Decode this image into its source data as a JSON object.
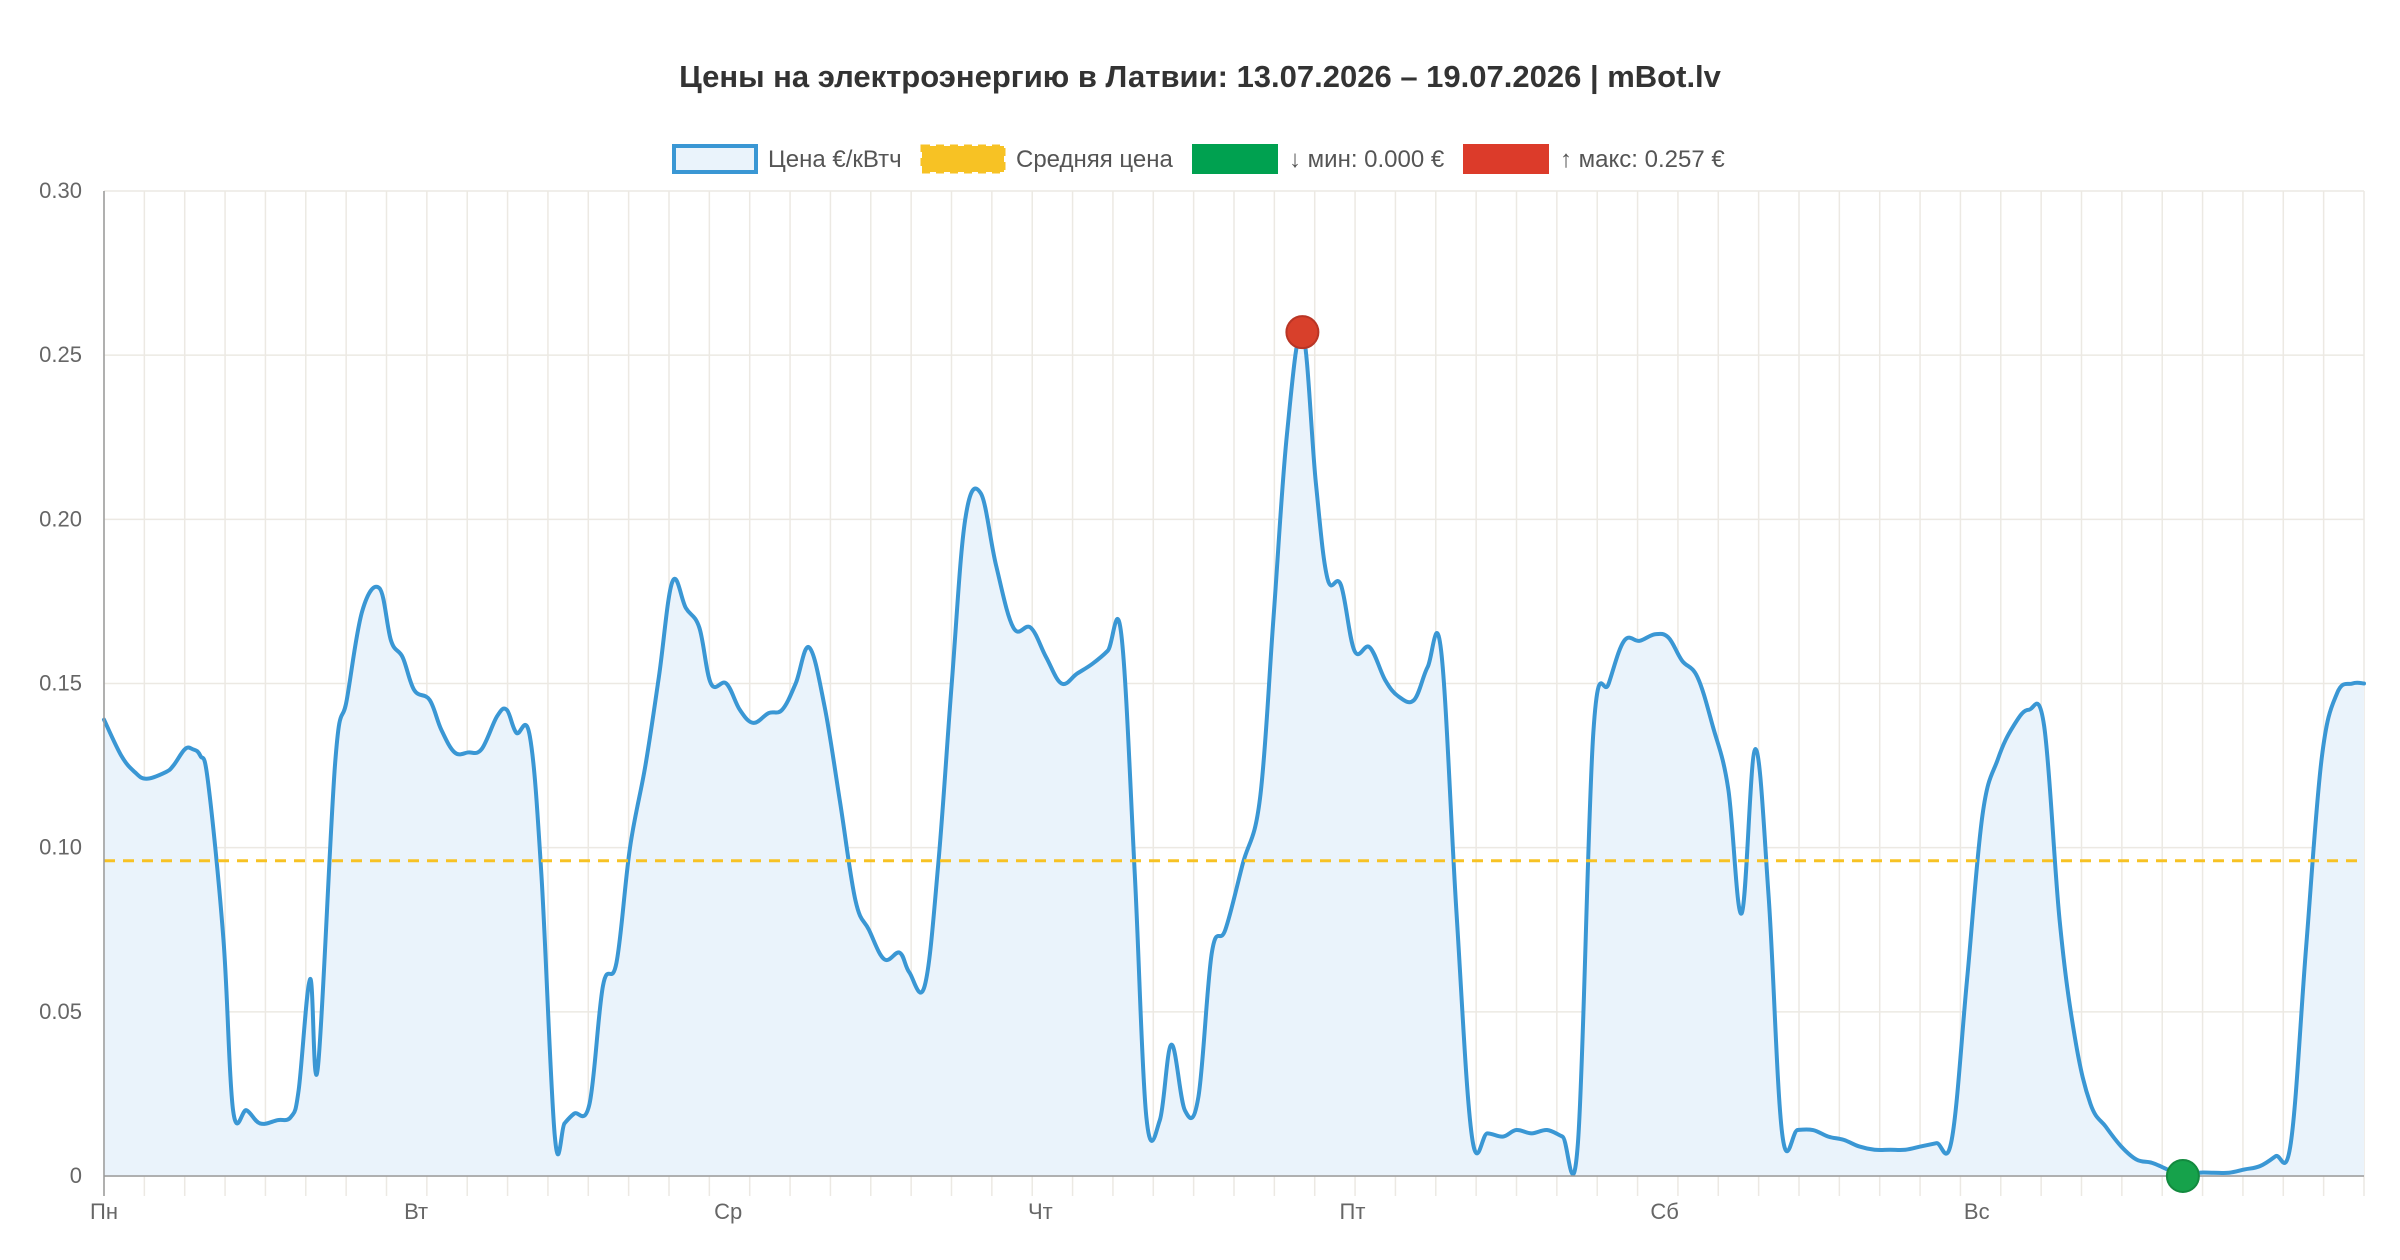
{
  "chart_data": {
    "type": "area",
    "title": "Цены на электроэнергию в Латвии: 13.07.2026 – 19.07.2026 | mBot.lv",
    "xlabel": "",
    "ylabel": "",
    "x_tick_labels": [
      "Пн",
      "Вт",
      "Ср",
      "Чт",
      "Пт",
      "Сб",
      "Вс"
    ],
    "y_tick_labels": [
      "0",
      "0.05",
      "0.10",
      "0.15",
      "0.20",
      "0.25",
      "0.30"
    ],
    "ylim": [
      0,
      0.3
    ],
    "x_points": 56,
    "x_range": [
      0,
      56
    ],
    "grid": true,
    "legend_placement": "top-center",
    "series": [
      {
        "name": "Цена €/кВтч",
        "color": "#3a97d4",
        "fill": "#eaf3fb",
        "values": [
          0.139,
          0.125,
          0.121,
          0.124,
          0.13,
          0.121,
          0.064,
          0.019,
          0.016,
          0.018,
          0.029,
          0.06,
          0.033,
          0.126,
          0.145,
          0.172,
          0.179,
          0.163,
          0.148,
          0.136,
          0.129,
          0.13,
          0.142,
          0.135,
          0.012,
          0.018,
          0.024,
          0.058,
          0.068,
          0.1,
          0.127,
          0.16,
          0.181,
          0.17,
          0.15,
          0.148
        ],
        "points": [
          [
            0.0,
            0.139
          ],
          [
            0.45,
            0.128
          ],
          [
            0.8,
            0.123
          ],
          [
            1.1,
            0.121
          ],
          [
            1.6,
            0.123
          ],
          [
            1.8,
            0.125
          ],
          [
            2.1,
            0.13
          ],
          [
            2.3,
            0.13
          ],
          [
            2.5,
            0.128
          ],
          [
            2.7,
            0.12
          ],
          [
            3.1,
            0.072
          ],
          [
            3.35,
            0.02
          ],
          [
            3.7,
            0.02
          ],
          [
            4.05,
            0.016
          ],
          [
            4.5,
            0.017
          ],
          [
            4.85,
            0.018
          ],
          [
            5.05,
            0.026
          ],
          [
            5.35,
            0.06
          ],
          [
            5.55,
            0.033
          ],
          [
            6.0,
            0.126
          ],
          [
            6.3,
            0.145
          ],
          [
            6.7,
            0.172
          ],
          [
            7.15,
            0.179
          ],
          [
            7.45,
            0.163
          ],
          [
            7.75,
            0.158
          ],
          [
            8.05,
            0.148
          ],
          [
            8.45,
            0.145
          ],
          [
            8.75,
            0.136
          ],
          [
            9.1,
            0.129
          ],
          [
            9.45,
            0.129
          ],
          [
            9.8,
            0.13
          ],
          [
            10.2,
            0.14
          ],
          [
            10.45,
            0.142
          ],
          [
            10.7,
            0.135
          ],
          [
            11.05,
            0.134
          ],
          [
            11.35,
            0.092
          ],
          [
            11.7,
            0.012
          ],
          [
            11.95,
            0.016
          ],
          [
            12.2,
            0.019
          ],
          [
            12.6,
            0.022
          ],
          [
            12.95,
            0.058
          ],
          [
            13.3,
            0.065
          ],
          [
            13.65,
            0.1
          ],
          [
            14.05,
            0.125
          ],
          [
            14.4,
            0.152
          ],
          [
            14.75,
            0.181
          ],
          [
            15.1,
            0.173
          ],
          [
            15.45,
            0.167
          ],
          [
            15.75,
            0.15
          ],
          [
            16.15,
            0.15
          ],
          [
            16.5,
            0.142
          ],
          [
            16.85,
            0.138
          ],
          [
            17.25,
            0.141
          ],
          [
            17.6,
            0.142
          ],
          [
            17.95,
            0.15
          ],
          [
            18.3,
            0.161
          ],
          [
            18.7,
            0.143
          ],
          [
            19.1,
            0.114
          ],
          [
            19.5,
            0.084
          ],
          [
            19.85,
            0.075
          ],
          [
            20.25,
            0.066
          ],
          [
            20.65,
            0.068
          ],
          [
            20.9,
            0.062
          ],
          [
            21.3,
            0.058
          ],
          [
            21.65,
            0.095
          ],
          [
            22.0,
            0.15
          ],
          [
            22.35,
            0.2
          ],
          [
            22.75,
            0.208
          ],
          [
            23.15,
            0.186
          ],
          [
            23.6,
            0.167
          ],
          [
            24.05,
            0.167
          ],
          [
            24.45,
            0.158
          ],
          [
            24.85,
            0.15
          ],
          [
            25.25,
            0.153
          ],
          [
            25.65,
            0.156
          ],
          [
            26.05,
            0.16
          ],
          [
            26.4,
            0.165
          ],
          [
            26.75,
            0.092
          ],
          [
            27.05,
            0.018
          ],
          [
            27.4,
            0.017
          ],
          [
            27.7,
            0.04
          ],
          [
            28.05,
            0.02
          ],
          [
            28.4,
            0.024
          ],
          [
            28.75,
            0.068
          ],
          [
            29.1,
            0.075
          ],
          [
            29.55,
            0.095
          ],
          [
            30.0,
            0.115
          ],
          [
            30.35,
            0.17
          ],
          [
            30.7,
            0.226
          ],
          [
            31.1,
            0.257
          ],
          [
            31.45,
            0.211
          ],
          [
            31.75,
            0.182
          ],
          [
            32.1,
            0.18
          ],
          [
            32.45,
            0.16
          ],
          [
            32.85,
            0.161
          ],
          [
            33.25,
            0.151
          ],
          [
            33.6,
            0.146
          ],
          [
            34.0,
            0.145
          ],
          [
            34.35,
            0.155
          ],
          [
            34.7,
            0.16
          ],
          [
            35.1,
            0.08
          ],
          [
            35.5,
            0.012
          ],
          [
            35.9,
            0.013
          ],
          [
            36.3,
            0.012
          ],
          [
            36.65,
            0.014
          ],
          [
            37.05,
            0.013
          ],
          [
            37.45,
            0.014
          ],
          [
            37.85,
            0.012
          ],
          [
            38.25,
            0.01
          ],
          [
            38.65,
            0.135
          ],
          [
            39.05,
            0.15
          ],
          [
            39.45,
            0.163
          ],
          [
            39.85,
            0.163
          ],
          [
            40.25,
            0.165
          ],
          [
            40.6,
            0.164
          ],
          [
            40.95,
            0.157
          ],
          [
            41.35,
            0.152
          ],
          [
            41.75,
            0.137
          ],
          [
            42.15,
            0.118
          ],
          [
            42.5,
            0.08
          ],
          [
            42.85,
            0.13
          ],
          [
            43.2,
            0.085
          ],
          [
            43.55,
            0.013
          ],
          [
            43.95,
            0.014
          ],
          [
            44.35,
            0.014
          ],
          [
            44.75,
            0.012
          ],
          [
            45.15,
            0.011
          ],
          [
            45.55,
            0.009
          ],
          [
            45.95,
            0.008
          ],
          [
            46.35,
            0.008
          ],
          [
            46.75,
            0.008
          ],
          [
            47.15,
            0.009
          ],
          [
            47.55,
            0.01
          ],
          [
            47.95,
            0.011
          ],
          [
            48.35,
            0.06
          ],
          [
            48.75,
            0.11
          ],
          [
            49.15,
            0.127
          ],
          [
            49.55,
            0.137
          ],
          [
            49.95,
            0.142
          ],
          [
            50.35,
            0.137
          ],
          [
            50.75,
            0.078
          ],
          [
            51.15,
            0.042
          ],
          [
            51.55,
            0.022
          ],
          [
            51.95,
            0.015
          ],
          [
            52.35,
            0.009
          ],
          [
            52.75,
            0.005
          ],
          [
            53.15,
            0.004
          ],
          [
            53.55,
            0.002
          ],
          [
            53.95,
            0.0
          ],
          [
            54.35,
            0.001
          ],
          [
            54.75,
            0.001
          ],
          [
            55.15,
            0.001
          ],
          [
            55.55,
            0.002
          ],
          [
            55.95,
            0.003
          ],
          [
            56.35,
            0.006
          ],
          [
            56.75,
            0.01
          ],
          [
            57.15,
            0.07
          ],
          [
            57.55,
            0.127
          ],
          [
            57.95,
            0.147
          ],
          [
            58.35,
            0.15
          ],
          [
            58.65,
            0.15
          ]
        ]
      },
      {
        "name": "Средняя цена",
        "color": "#f7c224",
        "value": 0.096
      }
    ],
    "markers": [
      {
        "name": "↓ мин: 0.000 €",
        "x": 53.95,
        "y": 0.0,
        "color": "#16a24b"
      },
      {
        "name": "↑ макс: 0.257 €",
        "x": 31.1,
        "y": 0.257,
        "color": "#d8402b"
      }
    ],
    "legend": [
      {
        "label": "Цена €/кВтч",
        "kind": "outline-box",
        "color": "#3a97d4",
        "fill": "#eaf3fb"
      },
      {
        "label": "Средняя цена",
        "kind": "dashed-box",
        "color": "#f7c224"
      },
      {
        "label": "↓ мин: 0.000 €",
        "kind": "box",
        "color": "#00a150"
      },
      {
        "label": "↑ макс: 0.257 €",
        "kind": "box",
        "color": "#dc3b2a"
      }
    ]
  }
}
